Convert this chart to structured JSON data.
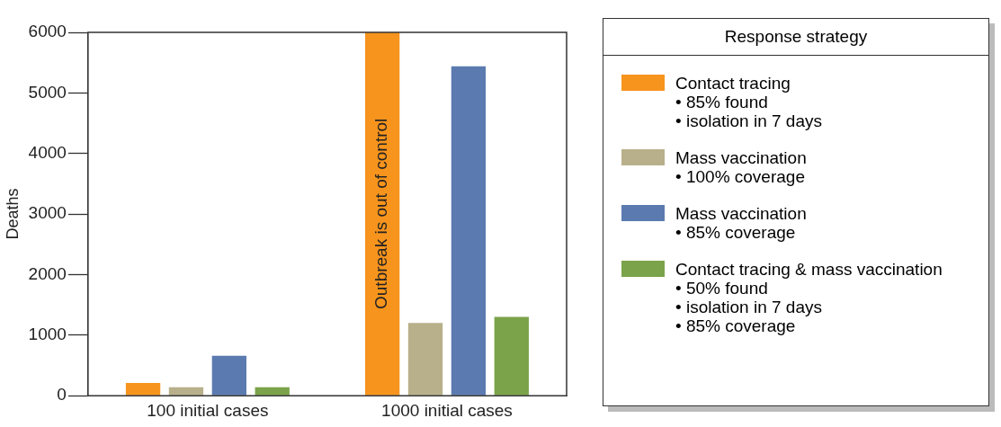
{
  "chart_data": {
    "type": "bar",
    "categories": [
      "100 initial cases",
      "1000 initial cases"
    ],
    "ylabel": "Deaths",
    "ylim": [
      0,
      6000
    ],
    "yticks": [
      0,
      1000,
      2000,
      3000,
      4000,
      5000,
      6000
    ],
    "grid": false,
    "legend": "right",
    "legend_title": "Response strategy",
    "series": [
      {
        "name": "Contact tracing\n• 85% found\n• isolation in 7 days",
        "color": "#f7941d",
        "values": [
          210,
          6000
        ]
      },
      {
        "name": "Mass vaccination\n• 100% coverage",
        "color": "#b8b08a",
        "values": [
          140,
          1200
        ]
      },
      {
        "name": "Mass vaccination\n• 85% coverage",
        "color": "#5b7bb0",
        "values": [
          660,
          5440
        ]
      },
      {
        "name": "Contact tracing & mass vaccination\n• 50% found\n• isolation in 7 days\n• 85% coverage",
        "color": "#7ba34a",
        "values": [
          140,
          1300
        ]
      }
    ],
    "annotations": [
      "Outbreak is out of control"
    ]
  }
}
